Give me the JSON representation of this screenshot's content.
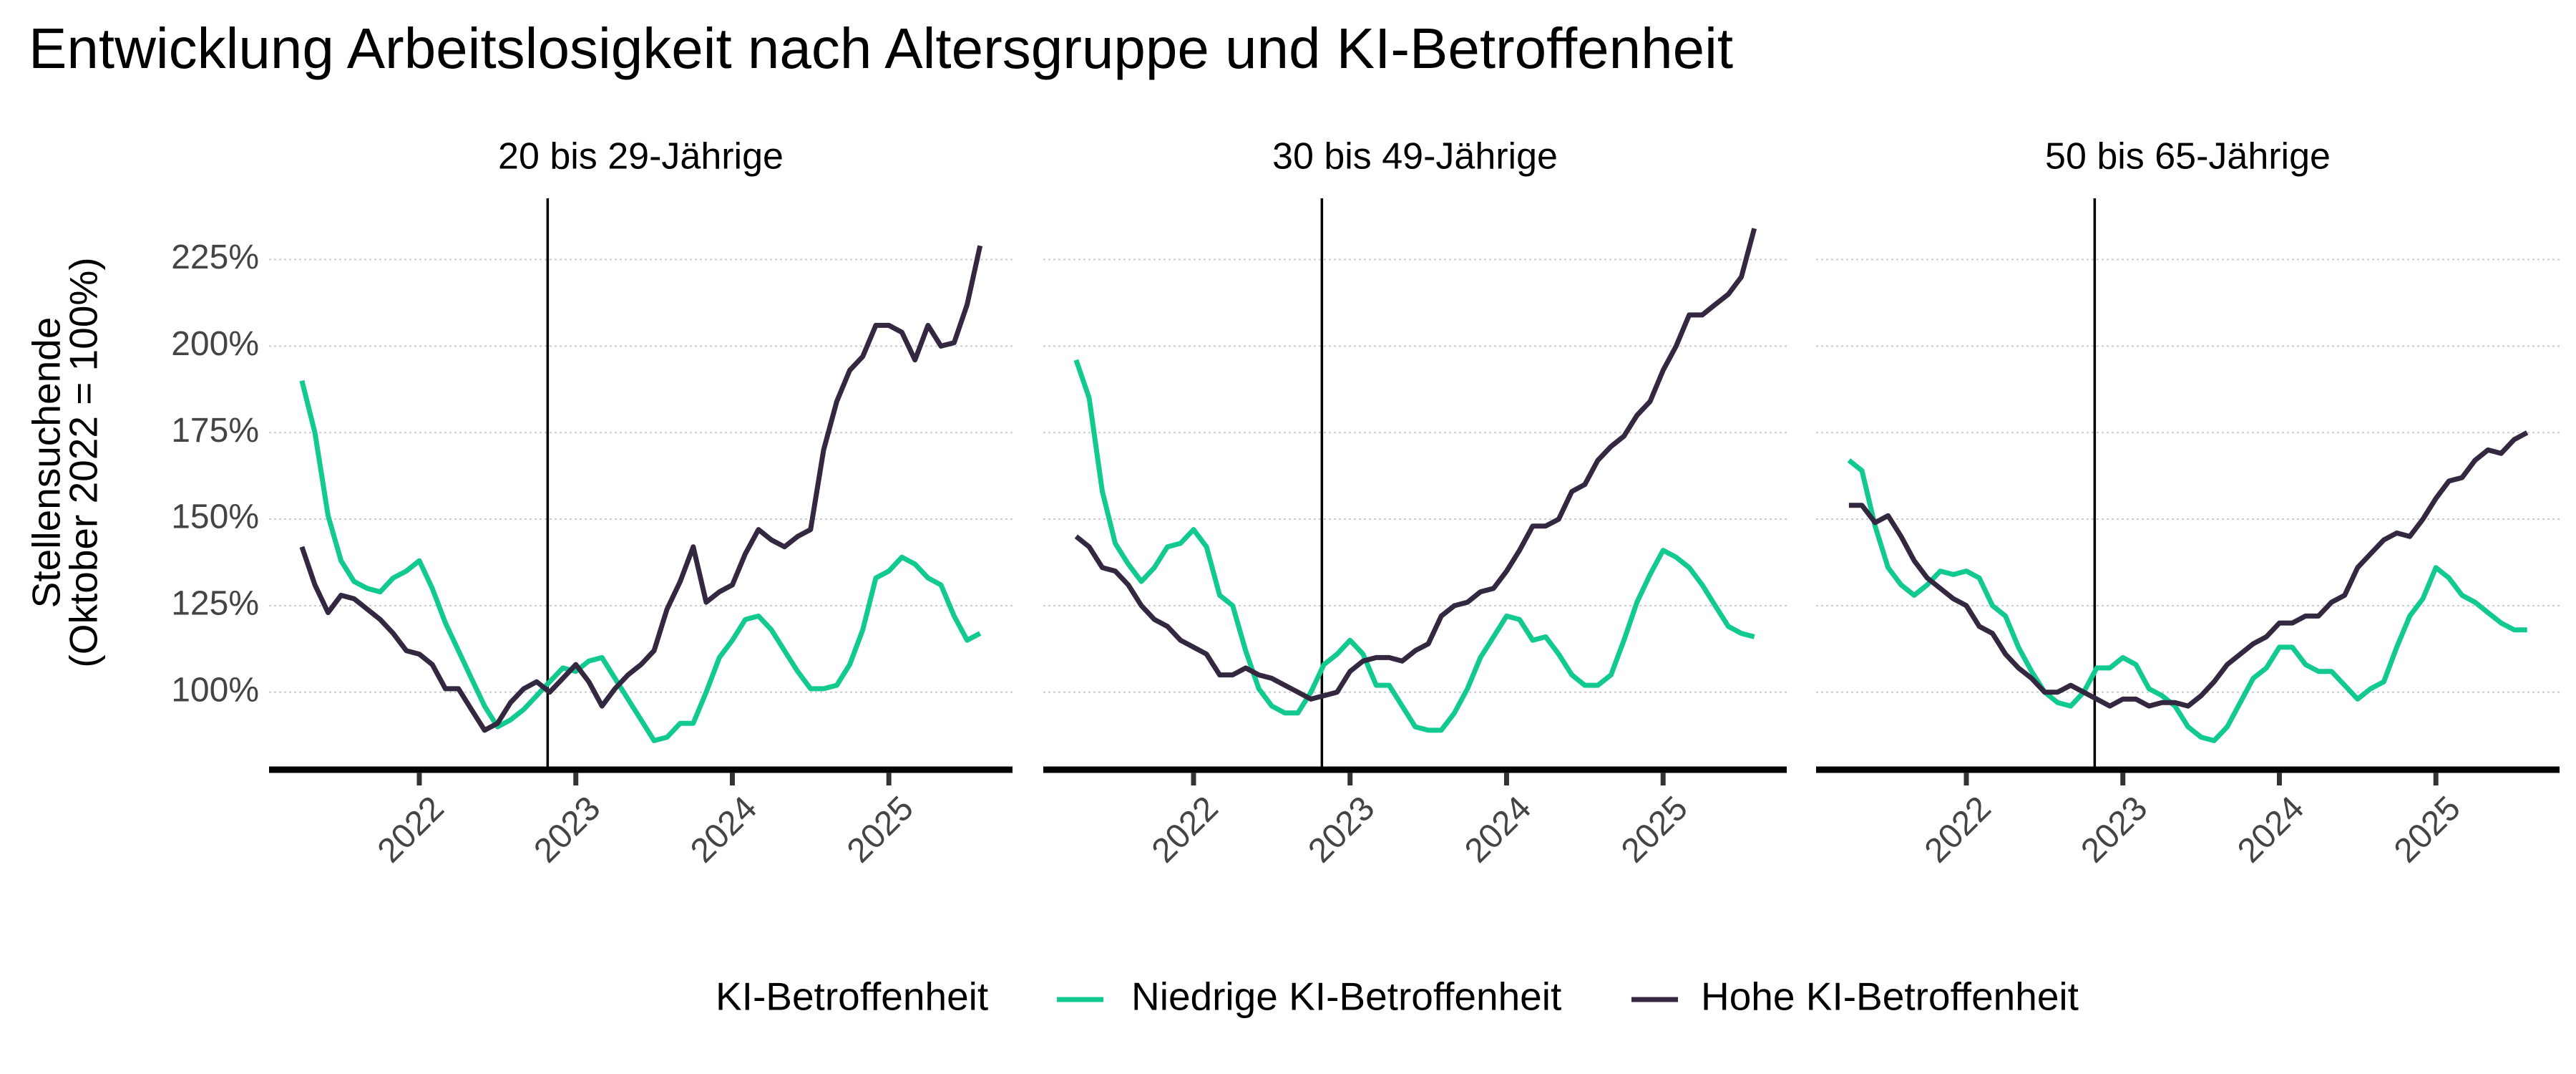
{
  "chart_data": {
    "type": "line",
    "title": "Entwicklung Arbeitslosigkeit nach Altersgruppe und KI-Betroffenheit",
    "ylabel": [
      "Stellensuchende",
      "(Oktober 2022 = 100%)"
    ],
    "legend_title": "KI-Betroffenheit",
    "series": [
      {
        "name": "Niedrige KI-Betroffenheit",
        "color": "#12c990"
      },
      {
        "name": "Hohe KI-Betroffenheit",
        "color": "#33283f"
      }
    ],
    "x": [
      2021.25,
      2021.333,
      2021.417,
      2021.5,
      2021.583,
      2021.667,
      2021.75,
      2021.833,
      2021.917,
      2022,
      2022.083,
      2022.167,
      2022.25,
      2022.333,
      2022.417,
      2022.5,
      2022.583,
      2022.667,
      2022.75,
      2022.833,
      2022.917,
      2023,
      2023.083,
      2023.167,
      2023.25,
      2023.333,
      2023.417,
      2023.5,
      2023.583,
      2023.667,
      2023.75,
      2023.833,
      2023.917,
      2024,
      2024.083,
      2024.167,
      2024.25,
      2024.333,
      2024.417,
      2024.5,
      2024.583,
      2024.667,
      2024.75,
      2024.833,
      2024.917,
      2025,
      2025.083,
      2025.167,
      2025.25,
      2025.333,
      2025.417,
      2025.5,
      2025.583
    ],
    "xlim": [
      2021.04,
      2025.79
    ],
    "xticks": [
      2022,
      2023,
      2024,
      2025
    ],
    "ylim": [
      77.6,
      242.7
    ],
    "yticks": [
      {
        "value": 100,
        "label": "100%"
      },
      {
        "value": 125,
        "label": "125%"
      },
      {
        "value": 150,
        "label": "150%"
      },
      {
        "value": 175,
        "label": "175%"
      },
      {
        "value": 200,
        "label": "200%"
      },
      {
        "value": 225,
        "label": "225%"
      }
    ],
    "vline": 2022.82,
    "grid": true,
    "panels": [
      {
        "title": "20 bis 29-Jährige",
        "values": [
          [
            190,
            175,
            151,
            138,
            132,
            130,
            129,
            133,
            135,
            138,
            130,
            120,
            112,
            104,
            96,
            90,
            92,
            95,
            99,
            103,
            107,
            106,
            109,
            110,
            104,
            98,
            92,
            86,
            87,
            91,
            91,
            100,
            110,
            115,
            121,
            122,
            118,
            112,
            106,
            101,
            101,
            102,
            108,
            118,
            133,
            135,
            139,
            137,
            133,
            131,
            122,
            115,
            117
          ],
          [
            142,
            131,
            123,
            128,
            127,
            124,
            121,
            117,
            112,
            111,
            108,
            101,
            101,
            95,
            89,
            91,
            97,
            101,
            103,
            100,
            104,
            108,
            103,
            96,
            101,
            105,
            108,
            112,
            124,
            132,
            142,
            126,
            129,
            131,
            140,
            147,
            144,
            142,
            145,
            147,
            170,
            184,
            193,
            197,
            206,
            206,
            204,
            196,
            206,
            200,
            201,
            212,
            229
          ]
        ]
      },
      {
        "title": "30 bis 49-Jährige",
        "values": [
          [
            196,
            185,
            158,
            143,
            137,
            132,
            136,
            142,
            143,
            147,
            142,
            128,
            125,
            112,
            101,
            96,
            94,
            94,
            100,
            108,
            111,
            115,
            111,
            102,
            102,
            96,
            90,
            89,
            89,
            94,
            101,
            110,
            116,
            122,
            121,
            115,
            116,
            111,
            105,
            102,
            102,
            105,
            115,
            126,
            134,
            141,
            139,
            136,
            131,
            125,
            119,
            117,
            116
          ],
          [
            145,
            142,
            136,
            135,
            131,
            125,
            121,
            119,
            115,
            113,
            111,
            105,
            105,
            107,
            105,
            104,
            102,
            100,
            98,
            99,
            100,
            106,
            109,
            110,
            110,
            109,
            112,
            114,
            122,
            125,
            126,
            129,
            130,
            135,
            141,
            148,
            148,
            150,
            158,
            160,
            167,
            171,
            174,
            180,
            184,
            193,
            200,
            209,
            209,
            212,
            215,
            220,
            234
          ]
        ]
      },
      {
        "title": "50 bis 65-Jährige",
        "values": [
          [
            167,
            164,
            148,
            136,
            131,
            128,
            131,
            135,
            134,
            135,
            133,
            125,
            122,
            113,
            106,
            100,
            97,
            96,
            100,
            107,
            107,
            110,
            108,
            101,
            99,
            96,
            90,
            87,
            86,
            90,
            97,
            104,
            107,
            113,
            113,
            108,
            106,
            106,
            102,
            98,
            101,
            103,
            113,
            122,
            127,
            136,
            133,
            128,
            126,
            123,
            120,
            118,
            118
          ],
          [
            154,
            154,
            149,
            151,
            145,
            138,
            133,
            130,
            127,
            125,
            119,
            117,
            111,
            107,
            104,
            100,
            100,
            102,
            100,
            98,
            96,
            98,
            98,
            96,
            97,
            97,
            96,
            99,
            103,
            108,
            111,
            114,
            116,
            120,
            120,
            122,
            122,
            126,
            128,
            136,
            140,
            144,
            146,
            145,
            150,
            156,
            161,
            162,
            167,
            170,
            169,
            173,
            175
          ]
        ]
      }
    ]
  }
}
